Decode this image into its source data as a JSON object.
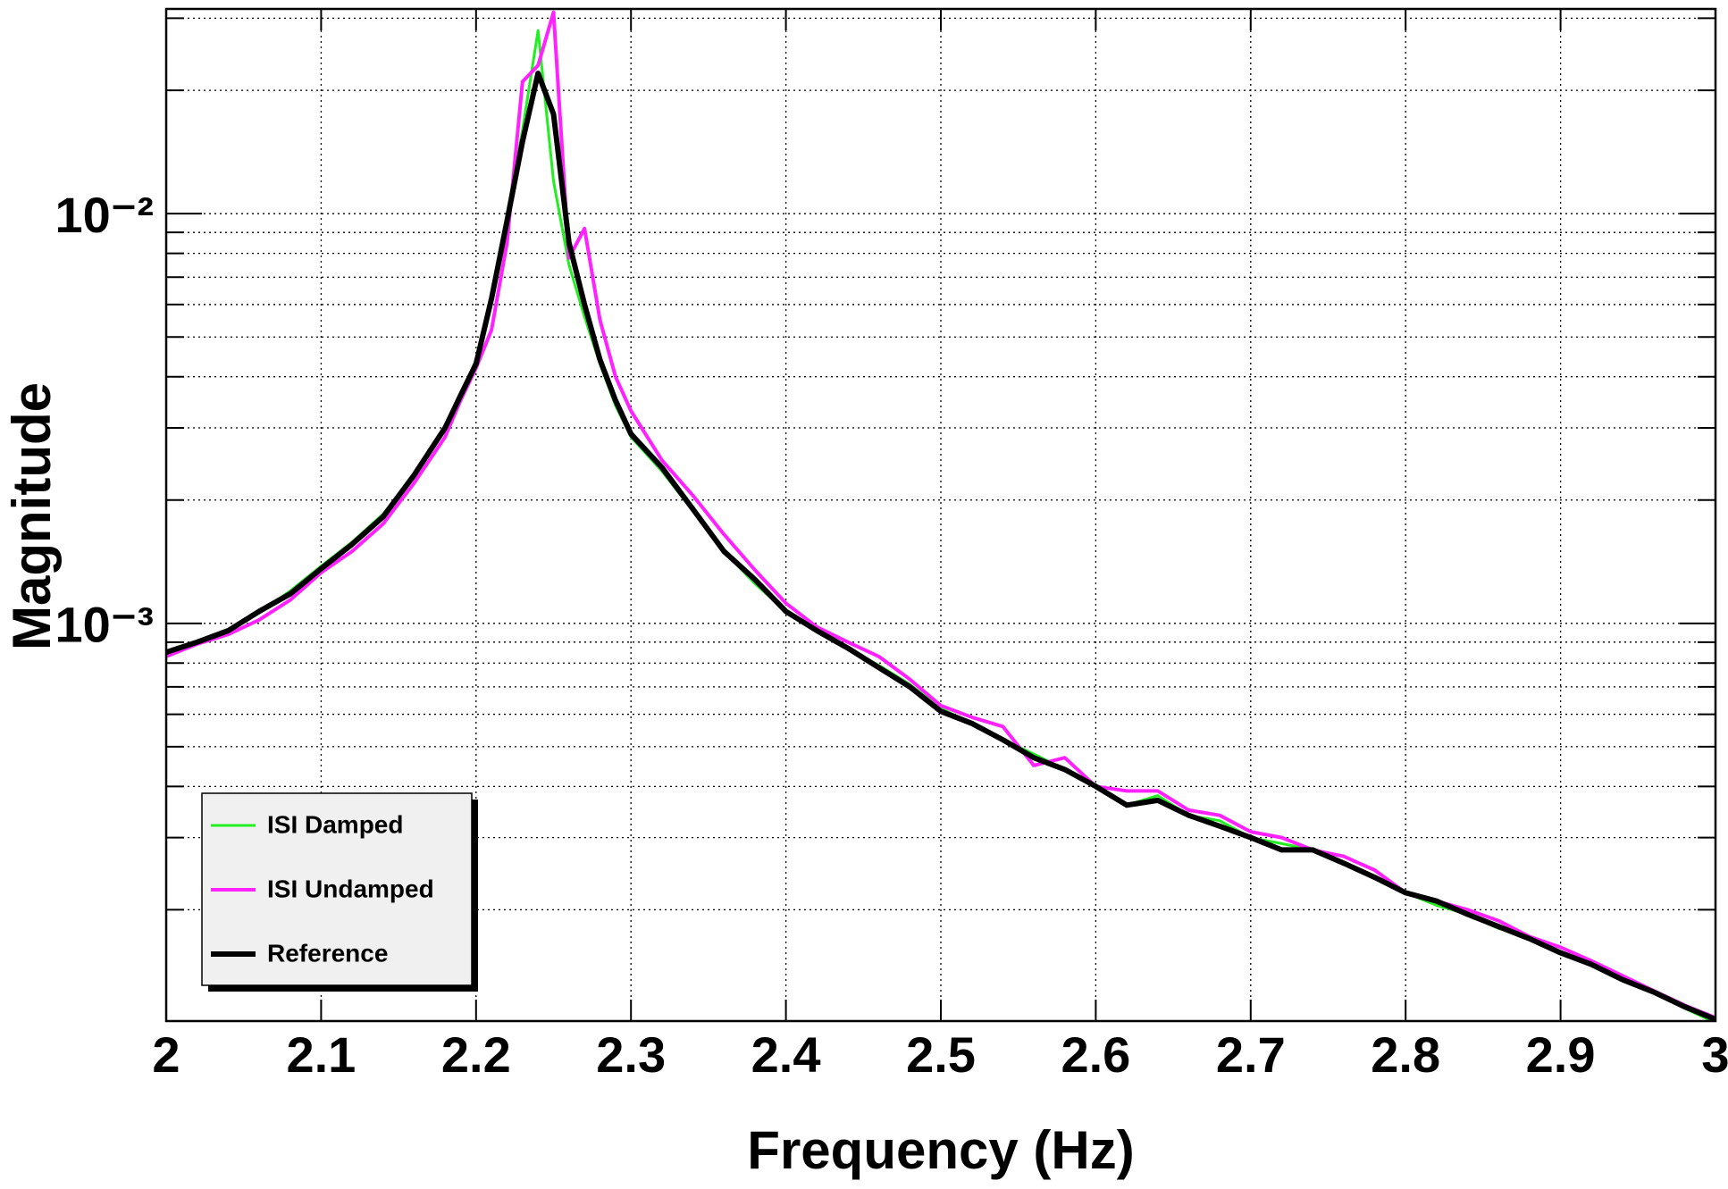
{
  "chart_data": {
    "type": "line",
    "xlabel": "Frequency (Hz)",
    "ylabel": "Magnitude",
    "x": [
      2.0,
      2.02,
      2.04,
      2.06,
      2.08,
      2.1,
      2.12,
      2.14,
      2.16,
      2.18,
      2.19,
      2.2,
      2.21,
      2.22,
      2.23,
      2.24,
      2.25,
      2.26,
      2.27,
      2.28,
      2.29,
      2.3,
      2.32,
      2.34,
      2.36,
      2.38,
      2.4,
      2.42,
      2.44,
      2.46,
      2.48,
      2.5,
      2.52,
      2.54,
      2.56,
      2.58,
      2.6,
      2.62,
      2.64,
      2.66,
      2.68,
      2.7,
      2.72,
      2.74,
      2.76,
      2.78,
      2.8,
      2.82,
      2.84,
      2.86,
      2.88,
      2.9,
      2.92,
      2.94,
      2.96,
      2.98,
      3.0
    ],
    "series": [
      {
        "name": "ISI Damped",
        "color": "#22ee22",
        "width": 3,
        "values": [
          0.00084,
          0.0009,
          0.00096,
          0.00106,
          0.0012,
          0.00138,
          0.00158,
          0.00185,
          0.0023,
          0.003,
          0.0036,
          0.0044,
          0.0064,
          0.01,
          0.016,
          0.028,
          0.012,
          0.0075,
          0.0056,
          0.0043,
          0.0034,
          0.00285,
          0.00235,
          0.00188,
          0.0015,
          0.00125,
          0.00107,
          0.00097,
          0.00087,
          0.00079,
          0.00071,
          0.00062,
          0.00057,
          0.00052,
          0.00048,
          0.00044,
          0.0004,
          0.00036,
          0.00038,
          0.00034,
          0.00033,
          0.0003,
          0.00029,
          0.00028,
          0.00026,
          0.00024,
          0.00022,
          0.000205,
          0.000195,
          0.00018,
          0.000172,
          0.000158,
          0.000148,
          0.000136,
          0.000126,
          0.000115,
          0.000106
        ]
      },
      {
        "name": "ISI Undamped",
        "color": "#ff22ff",
        "width": 4,
        "values": [
          0.00083,
          0.00089,
          0.00094,
          0.00102,
          0.00114,
          0.00133,
          0.0015,
          0.00175,
          0.0022,
          0.00285,
          0.0035,
          0.0042,
          0.0052,
          0.0085,
          0.021,
          0.023,
          0.031,
          0.0078,
          0.0092,
          0.0055,
          0.004,
          0.0033,
          0.0025,
          0.00205,
          0.00165,
          0.00135,
          0.00112,
          0.00098,
          0.0009,
          0.00083,
          0.00073,
          0.00063,
          0.00059,
          0.00056,
          0.00045,
          0.00047,
          0.0004,
          0.00039,
          0.00039,
          0.00035,
          0.00034,
          0.00031,
          0.0003,
          0.00028,
          0.00027,
          0.00025,
          0.00022,
          0.00021,
          0.0002,
          0.000188,
          0.000172,
          0.000162,
          0.00015,
          0.000138,
          0.000127,
          0.000117,
          0.000109
        ]
      },
      {
        "name": "Reference",
        "color": "#000000",
        "width": 6,
        "values": [
          0.00085,
          0.0009,
          0.00096,
          0.00107,
          0.00118,
          0.00136,
          0.00156,
          0.00182,
          0.0023,
          0.003,
          0.0036,
          0.0043,
          0.0062,
          0.0096,
          0.015,
          0.022,
          0.0175,
          0.0085,
          0.006,
          0.0044,
          0.0035,
          0.0029,
          0.0024,
          0.0019,
          0.0015,
          0.00128,
          0.00107,
          0.00096,
          0.00087,
          0.00078,
          0.0007,
          0.00061,
          0.00057,
          0.00052,
          0.00047,
          0.00044,
          0.0004,
          0.00036,
          0.00037,
          0.00034,
          0.00032,
          0.0003,
          0.00028,
          0.00028,
          0.00026,
          0.00024,
          0.00022,
          0.00021,
          0.000195,
          0.000182,
          0.00017,
          0.000157,
          0.000147,
          0.000135,
          0.000126,
          0.000116,
          0.000108
        ]
      }
    ],
    "xlim": [
      2,
      3
    ],
    "xticks": [
      2,
      2.1,
      2.2,
      2.3,
      2.4,
      2.5,
      2.6,
      2.7,
      2.8,
      2.9,
      3
    ],
    "ylim": [
      0.000107,
      0.0316
    ],
    "yticks": [
      {
        "value": 0.001,
        "label": "10⁻³"
      },
      {
        "value": 0.01,
        "label": "10⁻²"
      }
    ],
    "y_minor_ticks": [
      0.0002,
      0.0003,
      0.0004,
      0.0005,
      0.0006,
      0.0007,
      0.0008,
      0.0009,
      0.002,
      0.003,
      0.004,
      0.005,
      0.006,
      0.007,
      0.008,
      0.009,
      0.02,
      0.03
    ],
    "log_y": true,
    "grid": true,
    "legend": "bottom-left"
  }
}
